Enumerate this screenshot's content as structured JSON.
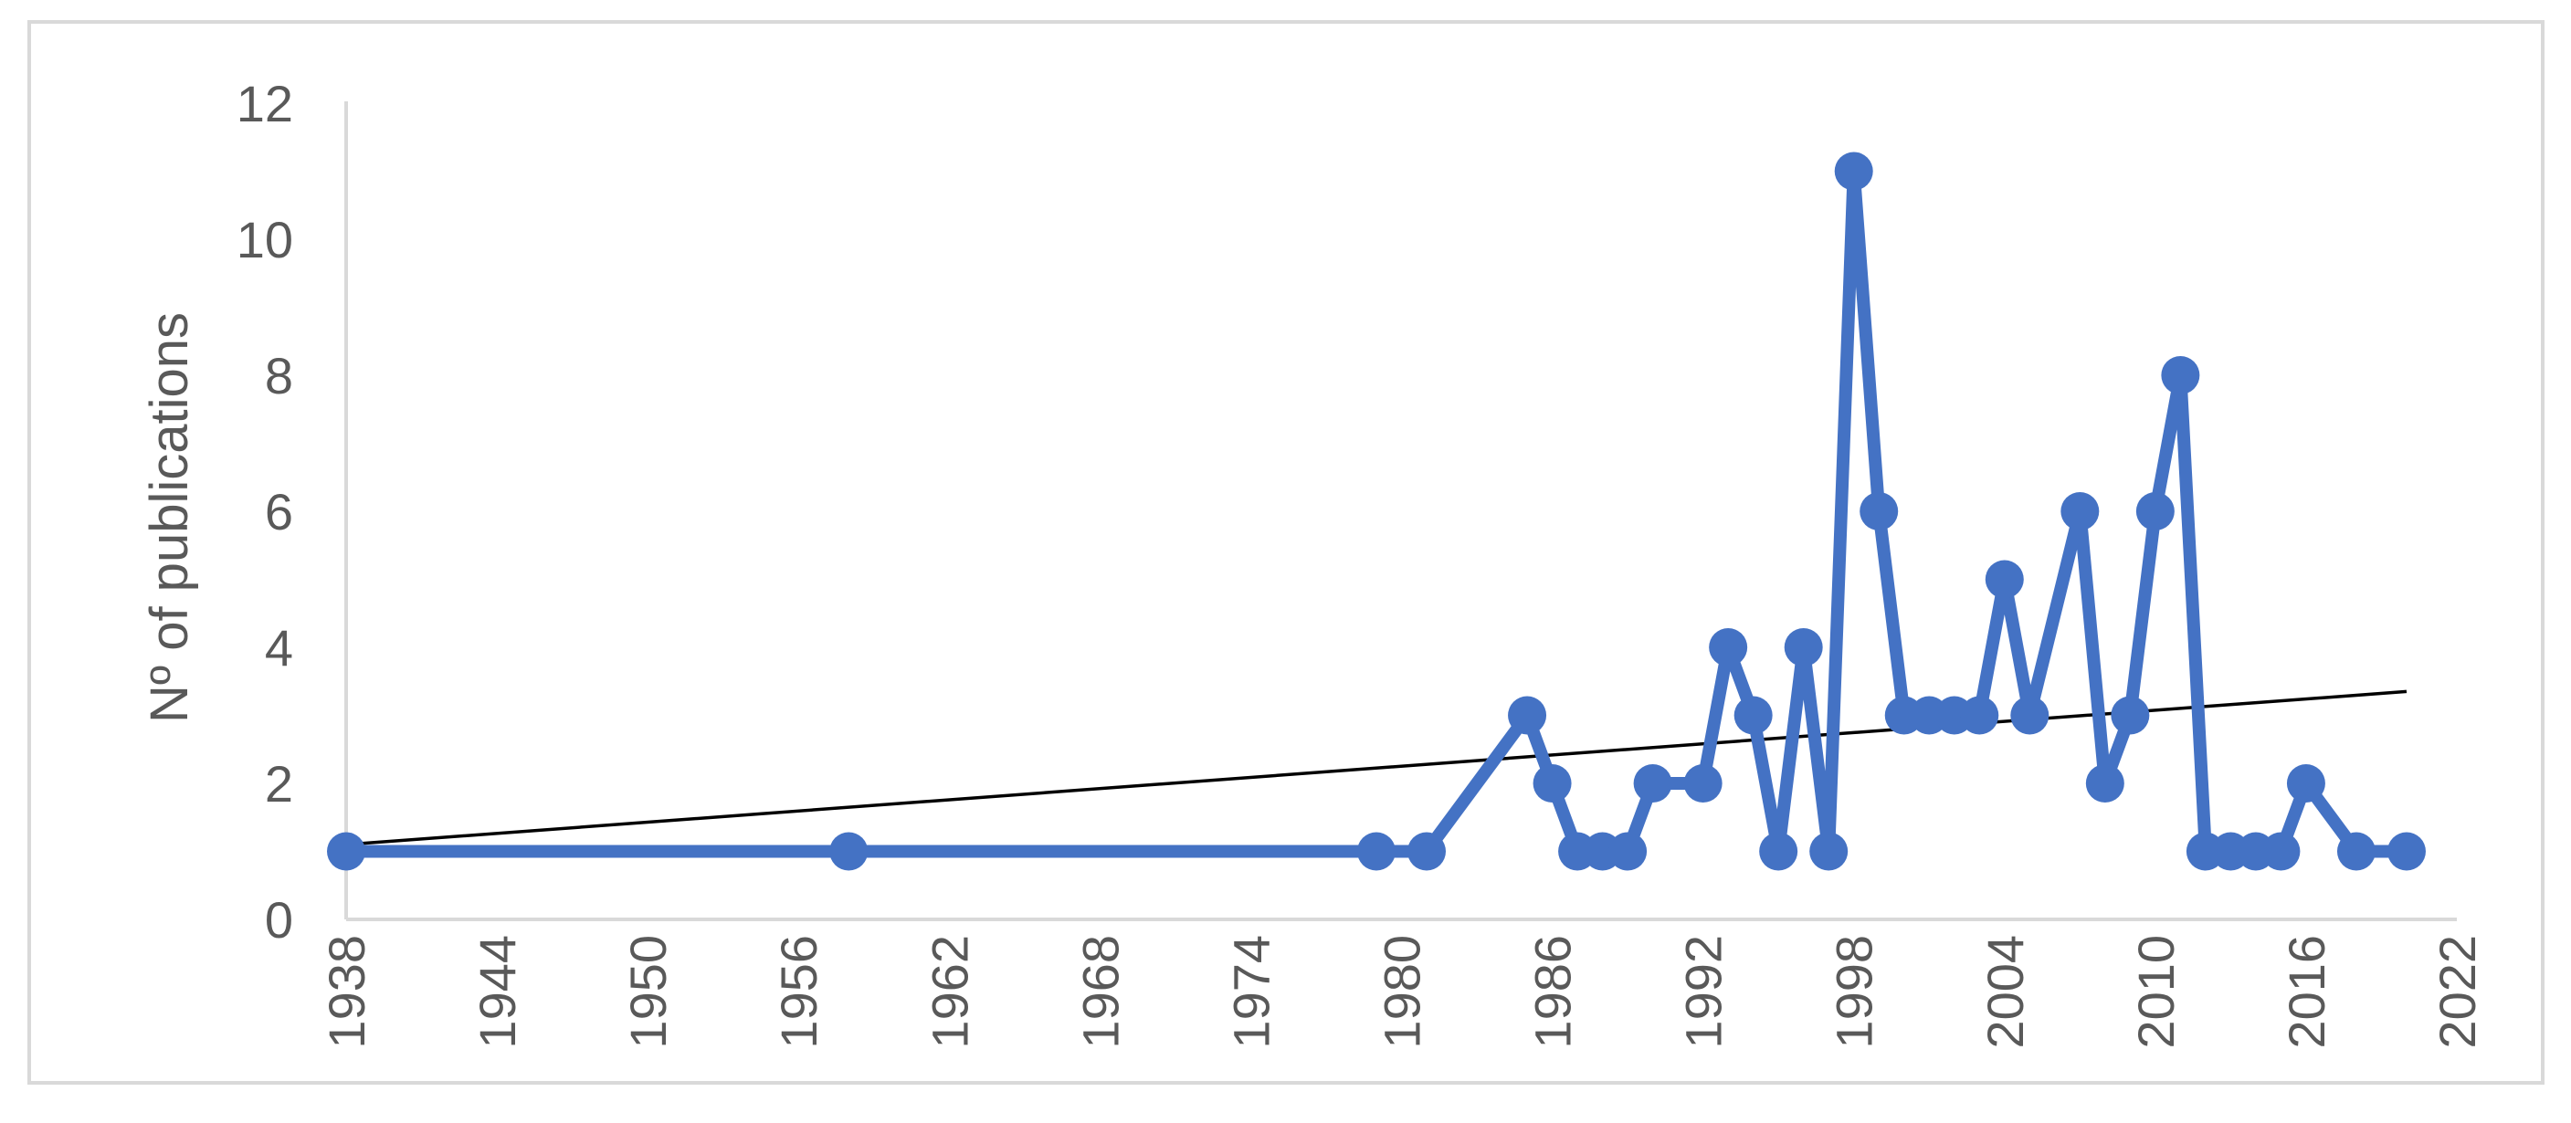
{
  "chart_data": {
    "type": "line",
    "title": "",
    "xlabel": "",
    "ylabel": "Nº of publications",
    "xlim": [
      1938,
      2022
    ],
    "ylim": [
      0,
      12
    ],
    "x_ticks": [
      1938,
      1944,
      1950,
      1956,
      1962,
      1968,
      1974,
      1980,
      1986,
      1992,
      1998,
      2004,
      2010,
      2016,
      2022
    ],
    "y_ticks": [
      0,
      2,
      4,
      6,
      8,
      10,
      12
    ],
    "grid": false,
    "legend": "none",
    "series": [
      {
        "color": "#4472C4",
        "marker": "circle",
        "points": [
          [
            1938,
            1
          ],
          [
            1958,
            1
          ],
          [
            1979,
            1
          ],
          [
            1981,
            1
          ],
          [
            1985,
            3
          ],
          [
            1986,
            2
          ],
          [
            1987,
            1
          ],
          [
            1988,
            1
          ],
          [
            1989,
            1
          ],
          [
            1990,
            2
          ],
          [
            1992,
            2
          ],
          [
            1993,
            4
          ],
          [
            1994,
            3
          ],
          [
            1995,
            1
          ],
          [
            1996,
            4
          ],
          [
            1997,
            1
          ],
          [
            1998,
            11
          ],
          [
            1999,
            6
          ],
          [
            2000,
            3
          ],
          [
            2001,
            3
          ],
          [
            2002,
            3
          ],
          [
            2003,
            3
          ],
          [
            2004,
            5
          ],
          [
            2005,
            3
          ],
          [
            2007,
            6
          ],
          [
            2008,
            2
          ],
          [
            2009,
            3
          ],
          [
            2010,
            6
          ],
          [
            2011,
            8
          ],
          [
            2012,
            1
          ],
          [
            2013,
            1
          ],
          [
            2014,
            1
          ],
          [
            2015,
            1
          ],
          [
            2016,
            2
          ],
          [
            2018,
            1
          ],
          [
            2020,
            1
          ]
        ]
      }
    ],
    "trendline": {
      "type": "linear",
      "color": "#000000",
      "x": [
        1938,
        2020
      ],
      "y": [
        1.1,
        3.35
      ]
    }
  }
}
